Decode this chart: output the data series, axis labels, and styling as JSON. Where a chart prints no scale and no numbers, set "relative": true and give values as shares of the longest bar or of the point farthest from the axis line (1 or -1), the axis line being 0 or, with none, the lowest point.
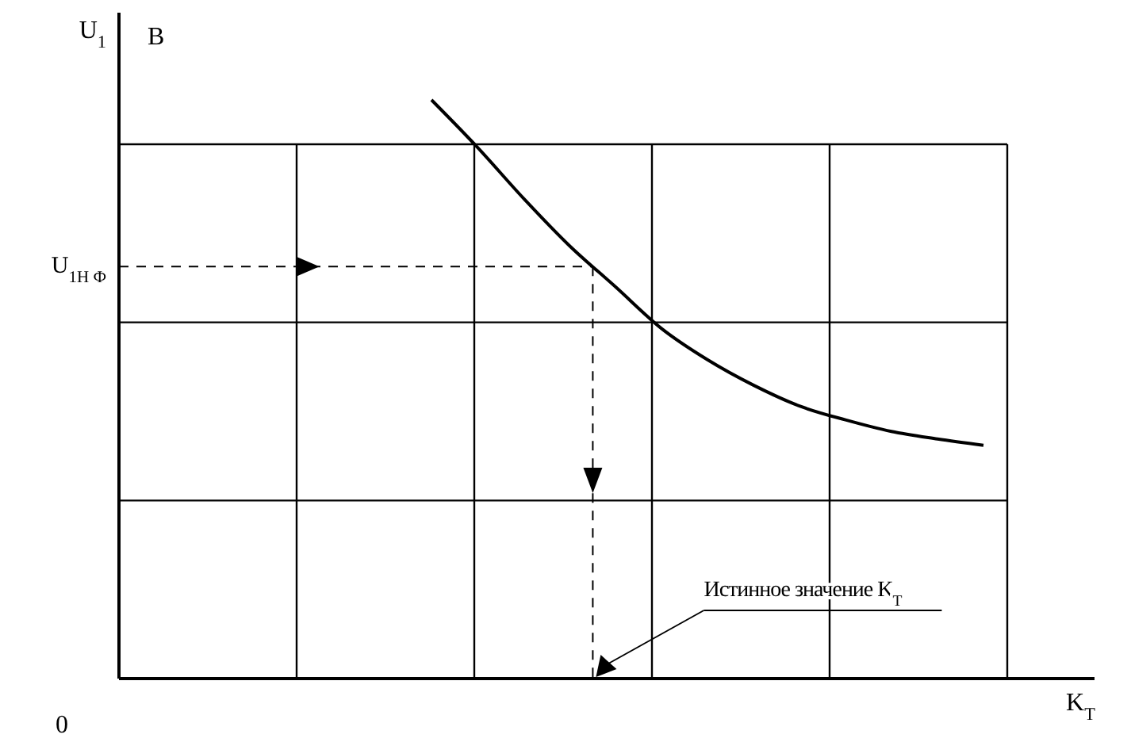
{
  "chart_data": {
    "type": "line",
    "relative": true,
    "xlabel": "K$_{T}$",
    "categories": [
      null,
      null,
      null,
      null,
      null,
      null,
      null,
      null,
      null,
      null,
      null,
      null,
      null
    ],
    "series": [
      {
        "color": "#000000",
        "values": [
          1,
          0.918,
          0.83,
          0.748,
          0.677,
          0.605,
          0.551,
          0.507,
          0.471,
          0.447,
          0.427,
          0.414,
          0.403
        ]
      }
    ],
    "grid": true,
    "ref_lines": [
      {
        "axis": "y",
        "value": 0.712,
        "label": "U$_{1Н Ф}$",
        "line_style": "dashed",
        "color": "#000000"
      }
    ],
    "annotations": [
      "U$_{1}$",
      "В",
      "0",
      "Истинное значение K$_{T}$"
    ]
  }
}
